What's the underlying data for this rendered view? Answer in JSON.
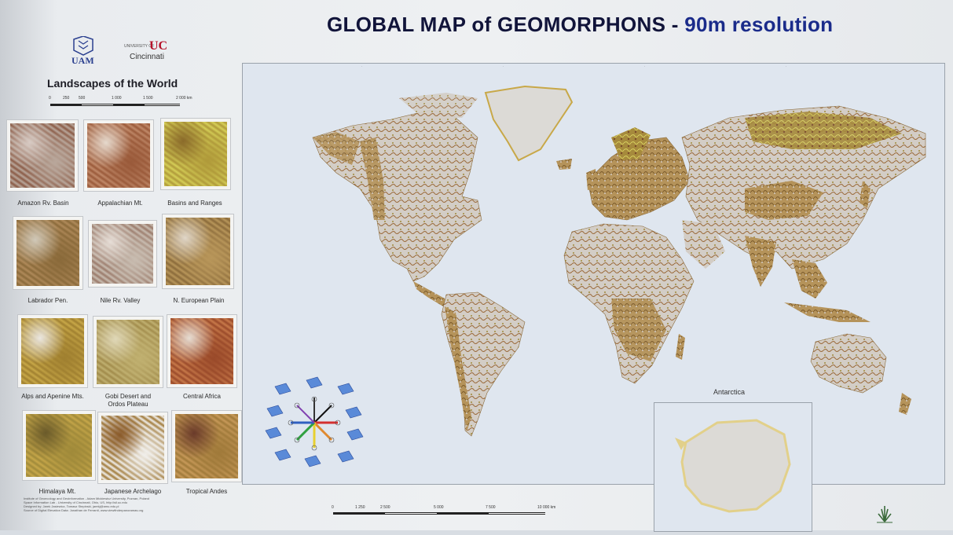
{
  "poster": {
    "title_main": "GLOBAL MAP of GEOMORPHONS - ",
    "title_res": "90m resolution",
    "logos": {
      "uam_text": "UAM",
      "uc_small": "UNIVERSITY OF",
      "uc_mark": "UC",
      "uc_name": "Cincinnati"
    }
  },
  "landscapes": {
    "title": "Landscapes of the World",
    "scale_labels": [
      "0",
      "250",
      "500",
      "1 000",
      "1 500",
      "2 000 km"
    ],
    "tiles": [
      {
        "label": "Amazon Rv. Basin",
        "icon": "amazon-thumbnail",
        "colors": [
          "#b9a79b",
          "#8a5a45",
          "#d8cbc4"
        ]
      },
      {
        "label": "Appalachian Mt.",
        "icon": "appalachian-thumbnail",
        "colors": [
          "#9a5a3a",
          "#c18a6a",
          "#e5d8cc"
        ]
      },
      {
        "label": "Basins and Ranges",
        "icon": "basins-thumbnail",
        "colors": [
          "#b09a3a",
          "#d6d058",
          "#8a6a2a"
        ]
      },
      {
        "label": "Labrador Pen.",
        "icon": "labrador-thumbnail",
        "colors": [
          "#8a6a3a",
          "#b08a5a",
          "#d0c8b8"
        ]
      },
      {
        "label": "Nile Rv. Valley",
        "icon": "nile-thumbnail",
        "colors": [
          "#c8bcb0",
          "#9a7a6a",
          "#e6ddd6"
        ]
      },
      {
        "label": "N. European Plain",
        "icon": "european-plain-thumbnail",
        "colors": [
          "#b8965a",
          "#8a6a3a",
          "#e0d6c8"
        ]
      },
      {
        "label": "Alps and Apenine Mts.",
        "icon": "alps-thumbnail",
        "colors": [
          "#a08030",
          "#c8a848",
          "#eae6e0"
        ]
      },
      {
        "label": "Gobi Desert and\nOrdos Plateau",
        "icon": "gobi-thumbnail",
        "colors": [
          "#c0b070",
          "#a08a4a",
          "#e0d8b8"
        ]
      },
      {
        "label": "Central Africa",
        "icon": "central-africa-thumbnail",
        "colors": [
          "#9a4a2a",
          "#c87a4a",
          "#e6dcd2"
        ]
      },
      {
        "label": "Himalaya Mt.",
        "icon": "himalaya-thumbnail",
        "colors": [
          "#a08a3a",
          "#c8a84a",
          "#6a5a2a"
        ]
      },
      {
        "label": "Japanese Archelago",
        "icon": "japan-thumbnail",
        "colors": [
          "#f0eeea",
          "#a07a3a",
          "#8a5a2a"
        ]
      },
      {
        "label": "Tropical Andes",
        "icon": "andes-thumbnail",
        "colors": [
          "#a07a3a",
          "#c89a5a",
          "#6a3a2a"
        ]
      }
    ]
  },
  "map": {
    "inset_title": "Antarctica",
    "scale_labels": [
      "0",
      "1 250",
      "2 500",
      "5 000",
      "7 500",
      "10 000 km"
    ],
    "colors": {
      "ocean": "#dfe6ef",
      "land_light": "#d9d4cf",
      "land_brown": "#9a6a3a",
      "land_olive": "#a08a3a",
      "ice": "#dcdad6",
      "ice_edge": "#e2d08a"
    }
  },
  "legend": {
    "icon": "geomorphon-pattern-legend"
  },
  "credits": {
    "line1": "Institute of Geoecology and Geoinformation - Adam Mickiewicz University, Poznan, Poland",
    "line2": "Space Information Lab - University of Cincinnati, Ohio, US, http://sil.uc.edu",
    "line3": "Designed by: Jarek Jasiewicz, Tomasz Stepinski, jarekj@amu.edu.pl",
    "line4": "Source of Digital Elevation Data: Jonathan de Ferranti, www.viewfinderpanoramas.org"
  }
}
